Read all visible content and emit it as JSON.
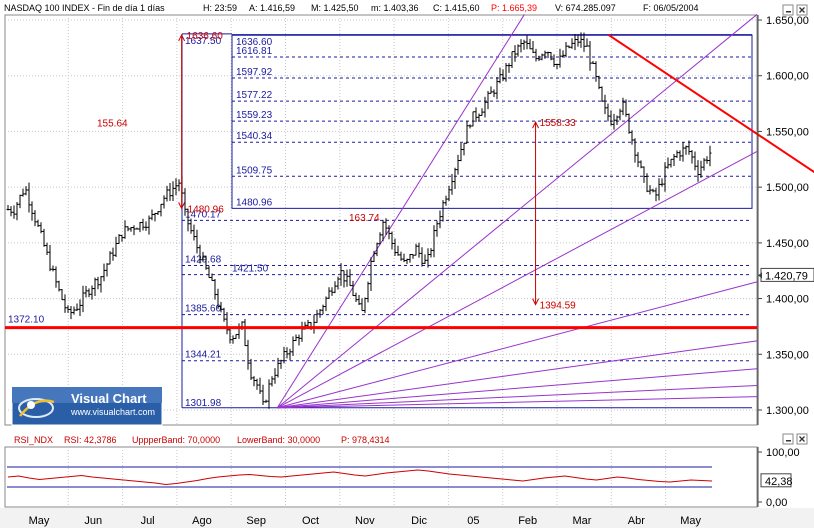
{
  "header": {
    "title": "NASDAQ 100 INDEX - Fin de día 1 días",
    "stats": [
      {
        "label": "H:",
        "value": "23:59"
      },
      {
        "label": "A:",
        "value": "1.416,59"
      },
      {
        "label": "M:",
        "value": "1.425,50"
      },
      {
        "label": "m:",
        "value": "1.403,36"
      },
      {
        "label": "C:",
        "value": "1.415,60"
      },
      {
        "label": "P:",
        "value": "1.665,39",
        "color": "#ff0000"
      },
      {
        "label": "V:",
        "value": "674.285.097"
      },
      {
        "label": "F:",
        "value": "06/05/2004"
      }
    ]
  },
  "logo": {
    "brand": "Visual Chart",
    "url": "www.visualchart.com"
  },
  "rsi_header": {
    "name": "RSI_NDX",
    "items": [
      {
        "label": "RSI:",
        "value": "42,3786"
      },
      {
        "label": "UppperBand:",
        "value": "70,0000"
      },
      {
        "label": "LowerBand:",
        "value": "30,0000"
      },
      {
        "label": "P:",
        "value": "978,4314"
      }
    ]
  },
  "colors": {
    "price_bars": "#000000",
    "fib_lines": "#1a1aa0",
    "fan_lines": "#9933cc",
    "trend_red": "#ff0000",
    "annotation_red": "#cc0000",
    "rsi_line": "#cc0000",
    "rsi_bands": "#1a1aa0"
  },
  "chart_data": [
    {
      "type": "ohlc",
      "instrument": "NASDAQ 100 INDEX",
      "x_ticks": [
        "May",
        "Jun",
        "Jul",
        "Ago",
        "Sep",
        "Oct",
        "Nov",
        "Dic",
        "05",
        "Feb",
        "Mar",
        "Abr",
        "May"
      ],
      "y_ticks": [
        "1.300,00",
        "1.350,00",
        "1.400,00",
        "1.450,00",
        "1.500,00",
        "1.550,00",
        "1.600,00",
        "1.650,00"
      ],
      "ylim": [
        1295,
        1655
      ],
      "last_value_label": "1.420,79",
      "last_value": 1420.79,
      "price_path": [
        {
          "x": 0.0,
          "y": 1480
        },
        {
          "x": 0.2,
          "y": 1500
        },
        {
          "x": 0.4,
          "y": 1470
        },
        {
          "x": 0.6,
          "y": 1440
        },
        {
          "x": 0.8,
          "y": 1410
        },
        {
          "x": 1.0,
          "y": 1385
        },
        {
          "x": 1.2,
          "y": 1395
        },
        {
          "x": 1.4,
          "y": 1410
        },
        {
          "x": 1.6,
          "y": 1420
        },
        {
          "x": 1.8,
          "y": 1440
        },
        {
          "x": 2.0,
          "y": 1460
        },
        {
          "x": 2.2,
          "y": 1465
        },
        {
          "x": 2.5,
          "y": 1470
        },
        {
          "x": 2.75,
          "y": 1490
        },
        {
          "x": 2.95,
          "y": 1500
        },
        {
          "x": 3.05,
          "y": 1505
        },
        {
          "x": 3.15,
          "y": 1475
        },
        {
          "x": 3.3,
          "y": 1455
        },
        {
          "x": 3.5,
          "y": 1430
        },
        {
          "x": 3.7,
          "y": 1405
        },
        {
          "x": 3.85,
          "y": 1380
        },
        {
          "x": 4.0,
          "y": 1365
        },
        {
          "x": 4.2,
          "y": 1375
        },
        {
          "x": 4.35,
          "y": 1335
        },
        {
          "x": 4.5,
          "y": 1320
        },
        {
          "x": 4.58,
          "y": 1302
        },
        {
          "x": 4.75,
          "y": 1330
        },
        {
          "x": 5.0,
          "y": 1350
        },
        {
          "x": 5.25,
          "y": 1368
        },
        {
          "x": 5.5,
          "y": 1378
        },
        {
          "x": 5.75,
          "y": 1400
        },
        {
          "x": 6.0,
          "y": 1425
        },
        {
          "x": 6.2,
          "y": 1410
        },
        {
          "x": 6.4,
          "y": 1385
        },
        {
          "x": 6.6,
          "y": 1440
        },
        {
          "x": 6.8,
          "y": 1470
        },
        {
          "x": 7.0,
          "y": 1445
        },
        {
          "x": 7.2,
          "y": 1430
        },
        {
          "x": 7.4,
          "y": 1445
        },
        {
          "x": 7.6,
          "y": 1430
        },
        {
          "x": 7.8,
          "y": 1470
        },
        {
          "x": 8.0,
          "y": 1500
        },
        {
          "x": 8.2,
          "y": 1530
        },
        {
          "x": 8.4,
          "y": 1560
        },
        {
          "x": 8.6,
          "y": 1570
        },
        {
          "x": 8.8,
          "y": 1585
        },
        {
          "x": 9.0,
          "y": 1600
        },
        {
          "x": 9.2,
          "y": 1620
        },
        {
          "x": 9.4,
          "y": 1630
        },
        {
          "x": 9.6,
          "y": 1615
        },
        {
          "x": 9.8,
          "y": 1625
        },
        {
          "x": 10.0,
          "y": 1610
        },
        {
          "x": 10.2,
          "y": 1625
        },
        {
          "x": 10.4,
          "y": 1632
        },
        {
          "x": 10.55,
          "y": 1625
        },
        {
          "x": 10.7,
          "y": 1600
        },
        {
          "x": 10.85,
          "y": 1570
        },
        {
          "x": 11.0,
          "y": 1560
        },
        {
          "x": 11.2,
          "y": 1575
        },
        {
          "x": 11.4,
          "y": 1540
        },
        {
          "x": 11.6,
          "y": 1505
        },
        {
          "x": 11.8,
          "y": 1490
        },
        {
          "x": 12.0,
          "y": 1515
        },
        {
          "x": 12.2,
          "y": 1530
        },
        {
          "x": 12.4,
          "y": 1535
        },
        {
          "x": 12.6,
          "y": 1515
        },
        {
          "x": 12.8,
          "y": 1530
        },
        {
          "x": 13.0,
          "y": 1540
        },
        {
          "x": 13.2,
          "y": 1515
        },
        {
          "x": 13.4,
          "y": 1505
        },
        {
          "x": 13.6,
          "y": 1540
        },
        {
          "x": 13.8,
          "y": 1520
        },
        {
          "x": 14.0,
          "y": 1500
        },
        {
          "x": 14.2,
          "y": 1490
        },
        {
          "x": 14.4,
          "y": 1480
        },
        {
          "x": 14.6,
          "y": 1485
        },
        {
          "x": 14.8,
          "y": 1495
        },
        {
          "x": 15.0,
          "y": 1495
        },
        {
          "x": 15.2,
          "y": 1480
        },
        {
          "x": 15.4,
          "y": 1455
        },
        {
          "x": 15.5,
          "y": 1425
        },
        {
          "x": 15.65,
          "y": 1405
        },
        {
          "x": 15.8,
          "y": 1420
        },
        {
          "x": 15.95,
          "y": 1435
        },
        {
          "x": 16.1,
          "y": 1420
        },
        {
          "x": 16.25,
          "y": 1416
        }
      ],
      "fib_retracement": [
        {
          "value": 1636.6,
          "label": "1636.60"
        },
        {
          "value": 1616.81,
          "label": "1616.81"
        },
        {
          "value": 1597.92,
          "label": "1597.92"
        },
        {
          "value": 1577.22,
          "label": "1577.22"
        },
        {
          "value": 1559.23,
          "label": "1559.23"
        },
        {
          "value": 1540.34,
          "label": "1540.34"
        },
        {
          "value": 1509.75,
          "label": "1509.75"
        },
        {
          "value": 1480.96,
          "label": "1480.96"
        }
      ],
      "fib_extension": [
        {
          "value": 1637.5,
          "label": "1637.50"
        },
        {
          "value": 1470.17,
          "label": "1470.17"
        },
        {
          "value": 1429.68,
          "label": "1429.68"
        },
        {
          "value": 1421.5,
          "label": "1421.50"
        },
        {
          "value": 1385.6,
          "label": "1385.60"
        },
        {
          "value": 1344.21,
          "label": "1344.21"
        },
        {
          "value": 1301.98,
          "label": "1301.98"
        }
      ],
      "support_line": {
        "value": 1372.1,
        "label": "1372.10"
      },
      "annotations": [
        {
          "label": "1636.60",
          "x": 3.05,
          "value": 1636.6
        },
        {
          "label": "155.64",
          "value": 1558.0
        },
        {
          "label": "1480.96",
          "x": 3.05,
          "value": 1480.96
        },
        {
          "label": "1558.33",
          "x": 9.55,
          "value": 1558.33
        },
        {
          "label": "163.74",
          "value": 1473.0
        },
        {
          "label": "1394.59",
          "x": 9.55,
          "value": 1394.59
        }
      ],
      "red_trendline": {
        "start": {
          "x": 10.95,
          "y": 1636.6
        },
        "end": {
          "x": 17.0,
          "y": 1440.0
        }
      },
      "fan_origin": {
        "x": 4.85,
        "y": 1301.98
      },
      "fan_targets": [
        {
          "x": 9.4,
          "y": 1655
        },
        {
          "x": 14.0,
          "y": 1655
        },
        {
          "x": 17.0,
          "y": 1532
        },
        {
          "x": 17.0,
          "y": 1415
        },
        {
          "x": 17.0,
          "y": 1362
        },
        {
          "x": 17.0,
          "y": 1337
        },
        {
          "x": 17.0,
          "y": 1322
        },
        {
          "x": 17.0,
          "y": 1312
        }
      ]
    },
    {
      "type": "line",
      "name": "RSI_NDX",
      "y_ticks": [
        "0,00",
        "100,00"
      ],
      "ylim": [
        0,
        100
      ],
      "upper_band": 70,
      "lower_band": 30,
      "last_value_label": "42,38",
      "last_value": 42.38,
      "values": [
        50,
        52,
        48,
        45,
        47,
        49,
        51,
        53,
        50,
        48,
        46,
        44,
        42,
        40,
        38,
        35,
        37,
        40,
        43,
        47,
        50,
        52,
        54,
        55,
        53,
        51,
        50,
        52,
        54,
        56,
        58,
        60,
        57,
        54,
        52,
        55,
        58,
        60,
        62,
        64,
        62,
        59,
        56,
        54,
        52,
        50,
        48,
        46,
        44,
        42,
        45,
        48,
        50,
        52,
        49,
        46,
        44,
        47,
        50,
        48,
        45,
        43,
        41,
        40,
        42,
        44,
        43,
        42
      ]
    }
  ]
}
